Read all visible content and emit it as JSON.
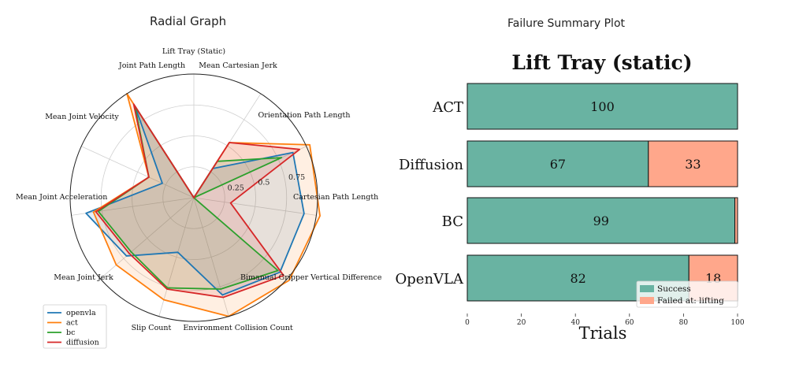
{
  "panels": {
    "radial_title": "Radial Graph",
    "failure_title": "Failure Summary Plot"
  },
  "chart_data": [
    {
      "type": "radar",
      "title": "Lift Tray (Static)",
      "axes": [
        "Lift Tray (Static)",
        "Mean Cartesian Jerk",
        "Orientation Path Length",
        "Cartesian Path Length",
        "Bimanual Gripper Vertical Difference",
        "Environment Collision Count",
        "Slip Count",
        "Mean Joint Jerk",
        "Mean Joint Acceleration",
        "Mean Joint Velocity",
        "Joint Path Length"
      ],
      "radial_ticks": [
        "0.25",
        "0.5",
        "0.75"
      ],
      "rlim": [
        0,
        1
      ],
      "series": [
        {
          "name": "openvla",
          "color": "#1f77b4",
          "values": [
            0.0,
            0.28,
            0.88,
            0.9,
            0.92,
            0.82,
            0.46,
            0.72,
            0.88,
            0.28,
            0.88
          ]
        },
        {
          "name": "act",
          "color": "#ff7f0e",
          "values": [
            0.0,
            0.53,
            1.03,
            1.03,
            1.02,
            1.0,
            0.86,
            0.83,
            0.82,
            0.4,
            1.0
          ]
        },
        {
          "name": "bc",
          "color": "#2ca02c",
          "values": [
            0.0,
            0.35,
            0.78,
            0.0,
            0.9,
            0.77,
            0.76,
            0.67,
            0.78,
            0.4,
            0.88
          ]
        },
        {
          "name": "diffusion",
          "color": "#d62728",
          "values": [
            0.0,
            0.53,
            0.94,
            0.3,
            0.96,
            0.84,
            0.77,
            0.69,
            0.8,
            0.4,
            0.9
          ]
        }
      ],
      "legend": [
        "openvla",
        "act",
        "bc",
        "diffusion"
      ],
      "legend_position": "bottom-left"
    },
    {
      "type": "bar",
      "orientation": "horizontal",
      "stacked": true,
      "title": "Lift Tray (static)",
      "categories": [
        "ACT",
        "Diffusion",
        "BC",
        "OpenVLA"
      ],
      "series": [
        {
          "name": "Success",
          "color": "#69b3a2",
          "values": [
            100,
            67,
            99,
            82
          ],
          "labels": [
            "100",
            "67",
            "99",
            "82"
          ]
        },
        {
          "name": "Failed at: lifting",
          "color": "#ffa78b",
          "values": [
            0,
            33,
            1,
            18
          ],
          "labels": [
            "",
            "33",
            "",
            "18"
          ]
        }
      ],
      "xlabel": "Trials",
      "xlim": [
        0,
        100
      ],
      "xticks": [
        "0",
        "20",
        "40",
        "60",
        "80",
        "100"
      ],
      "legend_position": "bottom-right"
    }
  ]
}
